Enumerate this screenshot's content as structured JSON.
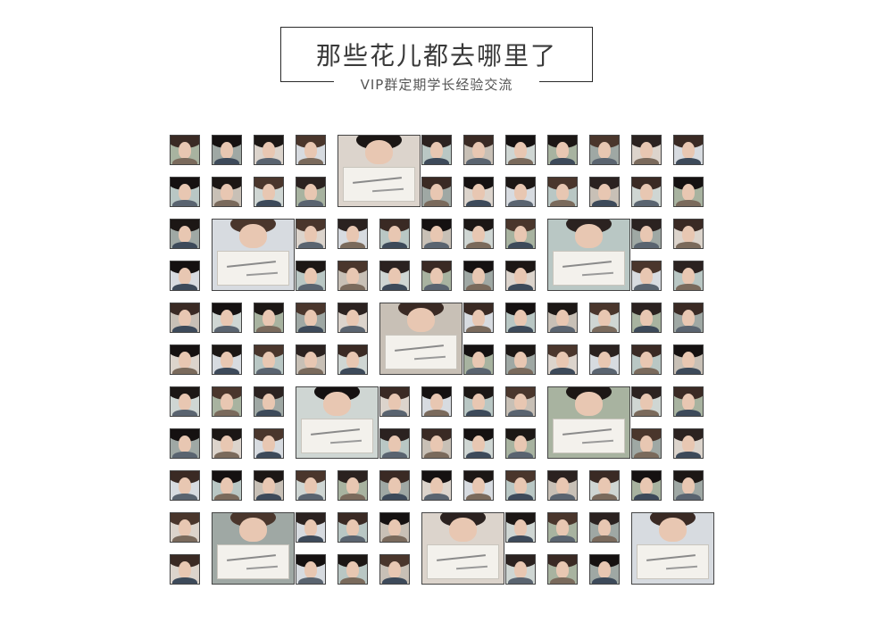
{
  "header": {
    "title": "那些花儿都去哪里了",
    "subtitle": "VIP群定期学长经验交流"
  },
  "colors": {
    "border": "#2a2a2a",
    "text": "#3a3a3a",
    "skin_tones": [
      "#e8c7b2",
      "#d9b39d",
      "#f0d2bf",
      "#c99d86",
      "#e2bda7"
    ],
    "hair_tones": [
      "#2b2220",
      "#1c1715",
      "#3a2a24",
      "#4a362c",
      "#151111"
    ],
    "bg_tones": [
      "#cfd6d3",
      "#b9c7c4",
      "#dcd4cc",
      "#a8b3a0",
      "#c8c0b6",
      "#d7dbe0",
      "#9fa8a4"
    ],
    "cloth_tones": [
      "#5a6470",
      "#2f3336",
      "#7a6a5c",
      "#8a8f98",
      "#3d4a5a",
      "#b0a090"
    ]
  },
  "photo_wall": {
    "icon": "portrait-photo-icon",
    "rows": 11,
    "columns": 13,
    "large_photos": [
      {
        "row": 0,
        "col": 4,
        "rows": 2,
        "cols": 2
      },
      {
        "row": 2,
        "col": 1,
        "rows": 2,
        "cols": 2
      },
      {
        "row": 2,
        "col": 9,
        "rows": 2,
        "cols": 2
      },
      {
        "row": 4,
        "col": 5,
        "rows": 2,
        "cols": 2
      },
      {
        "row": 6,
        "col": 3,
        "rows": 2,
        "cols": 2
      },
      {
        "row": 6,
        "col": 9,
        "rows": 2,
        "cols": 2
      },
      {
        "row": 9,
        "col": 1,
        "rows": 2,
        "cols": 2
      },
      {
        "row": 9,
        "col": 6,
        "rows": 2,
        "cols": 2
      },
      {
        "row": 9,
        "col": 11,
        "rows": 2,
        "cols": 2
      }
    ]
  }
}
